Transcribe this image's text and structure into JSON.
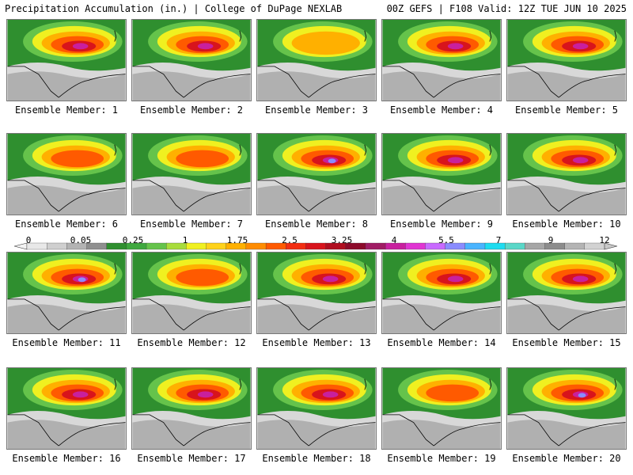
{
  "header": {
    "left": "Precipitation Accumulation (in.) | College of DuPage NEXLAB",
    "right": "00Z GEFS | F108 Valid: 12Z TUE JUN 10 2025"
  },
  "legend": {
    "ticks": [
      "0",
      "0.05",
      "0.25",
      "1",
      "1.75",
      "2.5",
      "3.25",
      "4",
      "5.5",
      "7",
      "9",
      "12"
    ],
    "colors": [
      "#e8e8e8",
      "#cfcfcf",
      "#b3b3b3",
      "#8f8f8f",
      "#2f8f2f",
      "#3fa83f",
      "#65c34b",
      "#a8dc3c",
      "#f0f020",
      "#ffd21a",
      "#ffb000",
      "#ff8c00",
      "#ff5a00",
      "#f22e12",
      "#d8141c",
      "#b00e20",
      "#8c0a2a",
      "#a01c64",
      "#c8209e",
      "#e035d2",
      "#c86aff",
      "#8a8cff",
      "#4ab4ff",
      "#1edcf0",
      "#5ad7c8",
      "#a6a6a6",
      "#8c8c8c",
      "#b4b4b4",
      "#d2d2d2"
    ]
  },
  "panels": [
    {
      "label": "Ensemble Member: 1",
      "intensity": 2
    },
    {
      "label": "Ensemble Member: 2",
      "intensity": 2
    },
    {
      "label": "Ensemble Member: 3",
      "intensity": 0
    },
    {
      "label": "Ensemble Member: 4",
      "intensity": 2
    },
    {
      "label": "Ensemble Member: 5",
      "intensity": 2
    },
    {
      "label": "Ensemble Member: 6",
      "intensity": 1
    },
    {
      "label": "Ensemble Member: 7",
      "intensity": 1
    },
    {
      "label": "Ensemble Member: 8",
      "intensity": 3
    },
    {
      "label": "Ensemble Member: 9",
      "intensity": 2
    },
    {
      "label": "Ensemble Member: 10",
      "intensity": 2
    },
    {
      "label": "Ensemble Member: 11",
      "intensity": 3
    },
    {
      "label": "Ensemble Member: 12",
      "intensity": 1
    },
    {
      "label": "Ensemble Member: 13",
      "intensity": 2
    },
    {
      "label": "Ensemble Member: 14",
      "intensity": 2
    },
    {
      "label": "Ensemble Member: 15",
      "intensity": 2
    },
    {
      "label": "Ensemble Member: 16",
      "intensity": 2
    },
    {
      "label": "Ensemble Member: 17",
      "intensity": 2
    },
    {
      "label": "Ensemble Member: 18",
      "intensity": 2
    },
    {
      "label": "Ensemble Member: 19",
      "intensity": 1
    },
    {
      "label": "Ensemble Member: 20",
      "intensity": 3
    }
  ]
}
